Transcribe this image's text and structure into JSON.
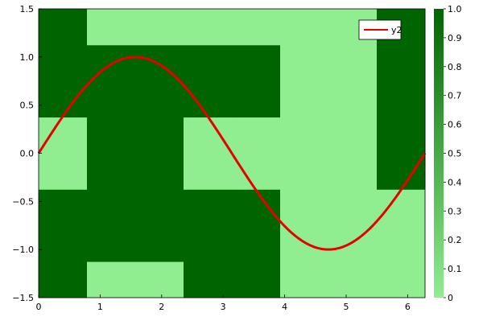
{
  "chart_data": {
    "type": "heatmap",
    "x_ticks": [
      0,
      1,
      2,
      3,
      4,
      5,
      6
    ],
    "y_ticks": [
      -1.5,
      -1.0,
      -0.5,
      0.0,
      0.5,
      1.0,
      1.5
    ],
    "x_tick_labels": [
      "0",
      "1",
      "2",
      "3",
      "4",
      "5",
      "6"
    ],
    "y_tick_labels": [
      "−1.5",
      "−1.0",
      "−0.5",
      "0.0",
      "0.5",
      "1.0",
      "1.5"
    ],
    "xlim": [
      0,
      6.2832
    ],
    "ylim": [
      -1.5,
      1.5
    ],
    "heatmap": {
      "x_edges": [
        0,
        0.7854,
        1.5708,
        2.3562,
        3.1416,
        3.927,
        4.7124,
        5.4978,
        6.2832
      ],
      "y_edges": [
        -1.5,
        -1.125,
        -0.75,
        -0.375,
        0.0,
        0.375,
        0.75,
        1.125,
        1.5
      ],
      "z_rows_bottom_to_top": [
        [
          1,
          0,
          0,
          1,
          1,
          0,
          0,
          0
        ],
        [
          1,
          1,
          1,
          1,
          1,
          0,
          0,
          0
        ],
        [
          1,
          1,
          1,
          1,
          1,
          0,
          0,
          0
        ],
        [
          0,
          1,
          1,
          0,
          0,
          0,
          0,
          1
        ],
        [
          0,
          1,
          1,
          0,
          0,
          0,
          0,
          1
        ],
        [
          1,
          1,
          1,
          1,
          1,
          0,
          0,
          1
        ],
        [
          1,
          1,
          1,
          1,
          1,
          0,
          0,
          1
        ],
        [
          1,
          0,
          0,
          0,
          0,
          0,
          0,
          1
        ]
      ],
      "color_low": "#90ee90",
      "color_high": "#006400",
      "clim": [
        0,
        1
      ]
    },
    "colorbar": {
      "ticks": [
        0,
        0.1,
        0.2,
        0.3,
        0.4,
        0.5,
        0.6,
        0.7,
        0.8,
        0.9,
        1.0
      ],
      "tick_labels": [
        "0",
        "0.1",
        "0.2",
        "0.3",
        "0.4",
        "0.5",
        "0.6",
        "0.7",
        "0.8",
        "0.9",
        "1.0"
      ]
    },
    "series": [
      {
        "name": "y2",
        "color": "#e60000",
        "function": "sin",
        "x": [
          0,
          0.2618,
          0.5236,
          0.7854,
          1.0472,
          1.309,
          1.5708,
          1.8326,
          2.0944,
          2.3562,
          2.618,
          2.8798,
          3.1416,
          3.4034,
          3.6652,
          3.927,
          4.1888,
          4.4506,
          4.7124,
          4.9742,
          5.236,
          5.4978,
          5.7596,
          6.0214,
          6.2832
        ],
        "y": [
          0,
          0.2588,
          0.5,
          0.7071,
          0.866,
          0.9659,
          1.0,
          0.9659,
          0.866,
          0.7071,
          0.5,
          0.2588,
          0,
          -0.2588,
          -0.5,
          -0.7071,
          -0.866,
          -0.9659,
          -1.0,
          -0.9659,
          -0.866,
          -0.7071,
          -0.5,
          -0.2588,
          0
        ]
      }
    ],
    "legend": {
      "placement": "top-right",
      "entries": [
        "y2"
      ]
    },
    "grid": false,
    "title": "",
    "xlabel": "",
    "ylabel": ""
  }
}
